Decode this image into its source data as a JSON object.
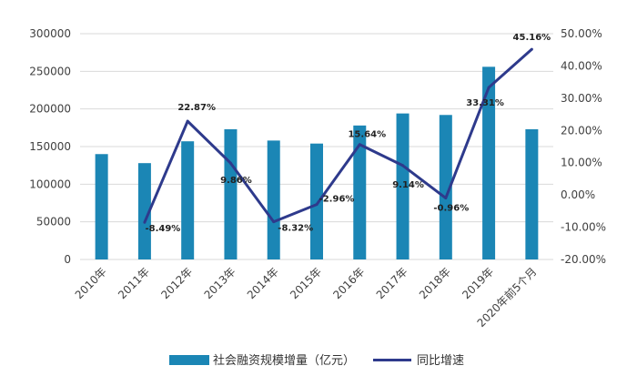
{
  "chart_data": {
    "type": "bar+line",
    "categories": [
      "2010年",
      "2011年",
      "2012年",
      "2013年",
      "2014年",
      "2015年",
      "2016年",
      "2017年",
      "2018年",
      "2019年",
      "2020年前5个月"
    ],
    "series": [
      {
        "name": "社会融资规模增量（亿元）",
        "type": "bar",
        "axis": "left",
        "values": [
          140000,
          128000,
          157000,
          173000,
          158000,
          154000,
          178000,
          194000,
          192000,
          256000,
          173000
        ]
      },
      {
        "name": "同比增速",
        "type": "line",
        "axis": "right",
        "values": [
          null,
          -8.49,
          22.87,
          9.86,
          -8.32,
          -2.96,
          15.64,
          9.14,
          -0.96,
          33.31,
          45.16
        ],
        "labels": [
          "",
          "-8.49%",
          "22.87%",
          "9.86%",
          "-8.32%",
          "-2.96%",
          "15.64%",
          "9.14%",
          "-0.96%",
          "33.31%",
          "45.16%"
        ]
      }
    ],
    "y_left": {
      "min": 0,
      "max": 300000,
      "ticks": [
        "0",
        "50000",
        "100000",
        "150000",
        "200000",
        "250000",
        "300000"
      ]
    },
    "y_right": {
      "min": -20,
      "max": 50,
      "ticks": [
        "-20.00%",
        "-10.00%",
        "0.00%",
        "10.00%",
        "20.00%",
        "30.00%",
        "40.00%",
        "50.00%"
      ]
    },
    "grid": true,
    "legend": "bottom",
    "colors": {
      "bar": "#1b86b5",
      "line": "#2e3a8c",
      "grid": "#d9d9d9",
      "text": "#404040"
    }
  }
}
